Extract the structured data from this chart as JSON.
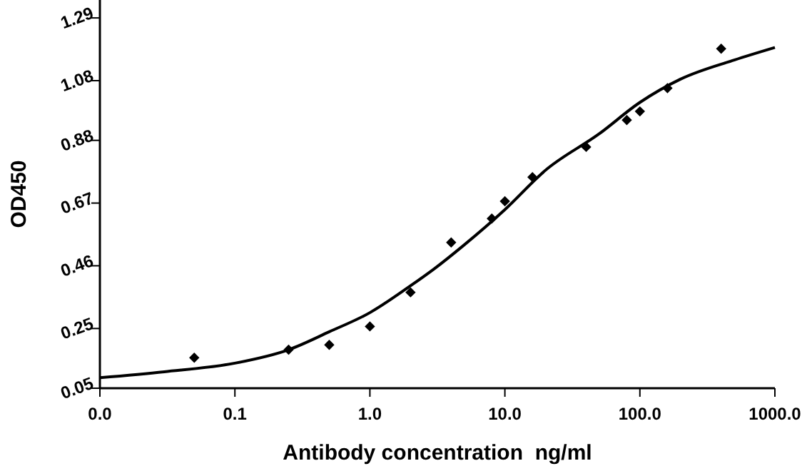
{
  "chart_data": {
    "type": "scatter",
    "xlabel": "Antibody concentration  ng/ml",
    "ylabel": "OD450",
    "log": "x",
    "xlim": [
      0.01,
      1000
    ],
    "xticks": [
      {
        "value": 0.01,
        "label": "0.0"
      },
      {
        "value": 0.1,
        "label": "0.1"
      },
      {
        "value": 1,
        "label": "1.0"
      },
      {
        "value": 10,
        "label": "10.0"
      },
      {
        "value": 100,
        "label": "100.0"
      },
      {
        "value": 1000,
        "label": "1000.0"
      }
    ],
    "ylim": [
      0.05,
      1.35
    ],
    "yticks": [
      0.05,
      0.25,
      0.46,
      0.67,
      0.88,
      1.08,
      1.29
    ],
    "grid": false,
    "series": [
      {
        "marker": "diamond",
        "color": "#000000",
        "x": [
          0.05,
          0.25,
          0.5,
          1,
          2,
          4,
          8,
          10,
          16,
          40,
          80,
          100,
          160,
          400
        ],
        "values": [
          0.152,
          0.179,
          0.195,
          0.257,
          0.371,
          0.538,
          0.618,
          0.676,
          0.757,
          0.858,
          0.948,
          0.977,
          1.055,
          1.187
        ]
      },
      {
        "type": "line",
        "marker": "none",
        "line_style": "solid",
        "color": "#000000",
        "x": [
          0.01,
          0.03,
          0.1,
          0.25,
          0.5,
          1,
          2,
          3,
          5,
          10,
          20,
          50,
          100,
          200,
          500,
          1000
        ],
        "values": [
          0.085,
          0.105,
          0.134,
          0.179,
          0.239,
          0.303,
          0.393,
          0.45,
          0.53,
          0.648,
          0.78,
          0.902,
          1.007,
          1.085,
          1.149,
          1.191
        ]
      }
    ]
  }
}
